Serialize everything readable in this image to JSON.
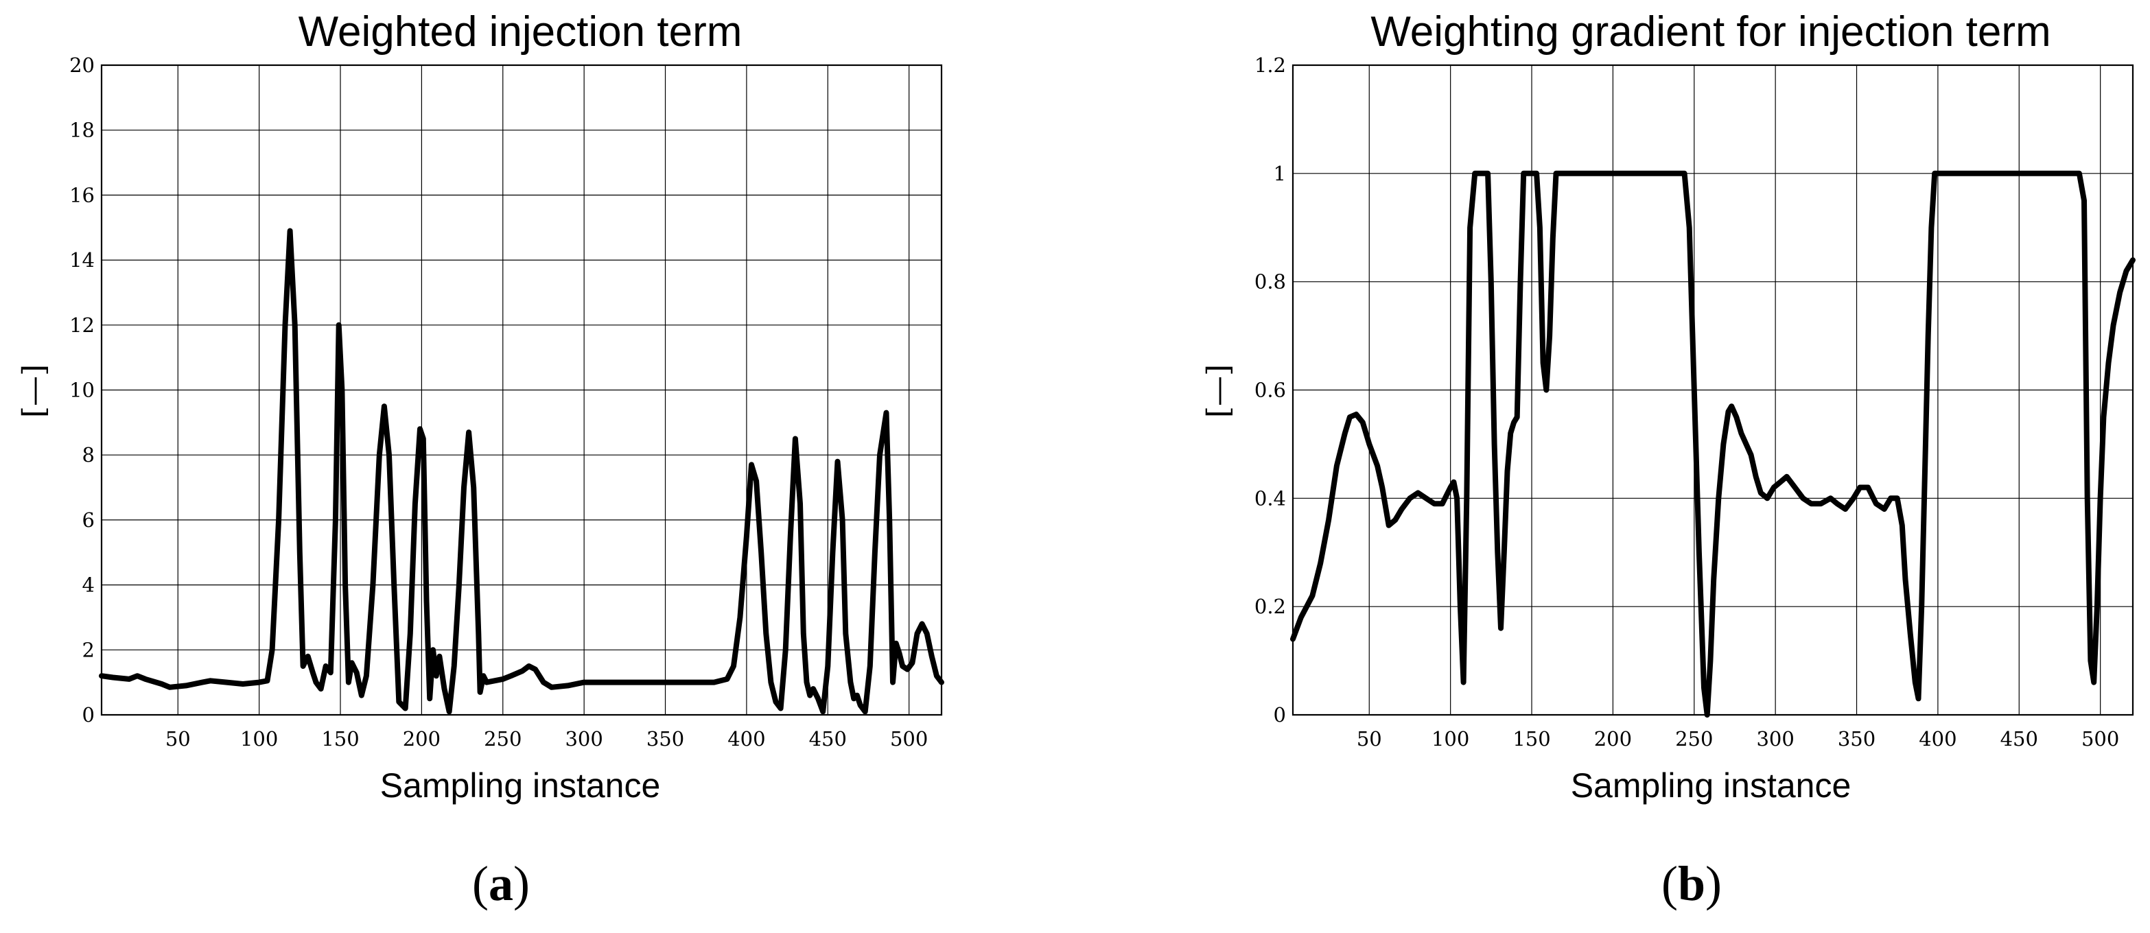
{
  "chart_data": [
    {
      "type": "line",
      "panel": "a",
      "title": "Weighted injection term",
      "xlabel": "Sampling instance",
      "ylabel": "[—]",
      "xlim": [
        3,
        520
      ],
      "ylim": [
        0,
        20
      ],
      "xticks": [
        50,
        100,
        150,
        200,
        250,
        300,
        350,
        400,
        450,
        500
      ],
      "yticks": [
        0,
        2,
        4,
        6,
        8,
        10,
        12,
        14,
        16,
        18,
        20
      ],
      "grid": true,
      "series": [
        {
          "name": "weighted injection term",
          "x": [
            3,
            10,
            20,
            25,
            30,
            40,
            45,
            55,
            65,
            70,
            80,
            90,
            100,
            105,
            108,
            112,
            116,
            119,
            122,
            125,
            127,
            130,
            133,
            135,
            138,
            141,
            144,
            147,
            149,
            151,
            153,
            155,
            157,
            160,
            163,
            166,
            170,
            174,
            177,
            180,
            183,
            186,
            188,
            190,
            193,
            196,
            199,
            201,
            203,
            205,
            207,
            209,
            211,
            214,
            217,
            220,
            223,
            226,
            229,
            232,
            235,
            236,
            238,
            240,
            250,
            255,
            262,
            266,
            270,
            275,
            280,
            290,
            300,
            320,
            350,
            370,
            380,
            388,
            392,
            396,
            400,
            403,
            406,
            409,
            412,
            415,
            418,
            421,
            424,
            427,
            430,
            433,
            435,
            437,
            439,
            441,
            444,
            447,
            450,
            453,
            456,
            459,
            461,
            464,
            466,
            468,
            470,
            473,
            476,
            479,
            482,
            486,
            488,
            490,
            492,
            494,
            496,
            499,
            502,
            505,
            508,
            511,
            514,
            517,
            520
          ],
          "values": [
            1.2,
            1.15,
            1.1,
            1.2,
            1.1,
            0.95,
            0.85,
            0.9,
            1.0,
            1.05,
            1.0,
            0.95,
            1.0,
            1.05,
            2.0,
            6.0,
            12.0,
            14.9,
            12.0,
            5.0,
            1.5,
            1.8,
            1.3,
            1.0,
            0.8,
            1.5,
            1.3,
            6.0,
            12.0,
            10.0,
            4.0,
            1.0,
            1.6,
            1.3,
            0.6,
            1.2,
            4.0,
            8.0,
            9.5,
            8.0,
            4.0,
            0.4,
            0.3,
            0.2,
            2.5,
            6.5,
            8.8,
            8.5,
            3.5,
            0.5,
            2.0,
            1.2,
            1.8,
            0.8,
            0.1,
            1.5,
            4.0,
            7.0,
            8.7,
            7.0,
            2.5,
            0.7,
            1.2,
            1.0,
            1.1,
            1.2,
            1.35,
            1.5,
            1.4,
            1.0,
            0.85,
            0.9,
            1.0,
            1.0,
            1.0,
            1.0,
            1.0,
            1.1,
            1.5,
            3.0,
            5.5,
            7.7,
            7.2,
            5.0,
            2.5,
            1.0,
            0.4,
            0.2,
            2.0,
            5.5,
            8.5,
            6.5,
            2.5,
            1.0,
            0.6,
            0.8,
            0.5,
            0.1,
            1.5,
            5.0,
            7.8,
            6.0,
            2.5,
            1.0,
            0.5,
            0.6,
            0.3,
            0.1,
            1.5,
            5.0,
            8.0,
            9.3,
            6.0,
            1.0,
            2.2,
            1.9,
            1.5,
            1.4,
            1.6,
            2.5,
            2.8,
            2.5,
            1.8,
            1.2,
            1.0
          ]
        }
      ]
    },
    {
      "type": "line",
      "panel": "b",
      "title": "Weighting gradient for injection term",
      "xlabel": "Sampling instance",
      "ylabel": "[—]",
      "xlim": [
        3,
        520
      ],
      "ylim": [
        0,
        1.2
      ],
      "xticks": [
        50,
        100,
        150,
        200,
        250,
        300,
        350,
        400,
        450,
        500
      ],
      "yticks": [
        0,
        0.2,
        0.4,
        0.6,
        0.8,
        1,
        1.2
      ],
      "ytick_labels": [
        "0",
        "0.2",
        "0.4",
        "0.6",
        "0.8",
        "1",
        "1.2"
      ],
      "grid": true,
      "series": [
        {
          "name": "weighting gradient",
          "x": [
            3,
            8,
            15,
            20,
            25,
            30,
            35,
            38,
            42,
            46,
            50,
            55,
            58,
            62,
            66,
            70,
            75,
            80,
            85,
            90,
            95,
            100,
            102,
            104,
            106,
            108,
            110,
            112,
            115,
            118,
            121,
            123,
            125,
            127,
            129,
            131,
            133,
            135,
            137,
            139,
            141,
            143,
            145,
            147,
            149,
            151,
            153,
            155,
            157,
            159,
            161,
            163,
            165,
            170,
            180,
            200,
            220,
            240,
            244,
            247,
            250,
            253,
            256,
            258,
            260,
            262,
            265,
            268,
            271,
            273,
            276,
            279,
            282,
            285,
            288,
            291,
            295,
            299,
            303,
            307,
            312,
            317,
            322,
            328,
            334,
            338,
            343,
            348,
            352,
            357,
            362,
            367,
            371,
            375,
            378,
            380,
            383,
            386,
            388,
            390,
            392,
            394,
            396,
            398,
            400,
            420,
            450,
            470,
            480,
            487,
            490,
            492,
            494,
            496,
            498,
            500,
            502,
            505,
            508,
            512,
            516,
            520
          ],
          "values": [
            0.14,
            0.18,
            0.22,
            0.28,
            0.36,
            0.46,
            0.52,
            0.55,
            0.555,
            0.54,
            0.5,
            0.46,
            0.42,
            0.35,
            0.36,
            0.38,
            0.4,
            0.41,
            0.4,
            0.39,
            0.39,
            0.42,
            0.43,
            0.4,
            0.2,
            0.06,
            0.4,
            0.9,
            1.0,
            1.0,
            1.0,
            1.0,
            0.8,
            0.5,
            0.3,
            0.16,
            0.3,
            0.45,
            0.52,
            0.54,
            0.55,
            0.8,
            1.0,
            1.0,
            1.0,
            1.0,
            1.0,
            0.9,
            0.65,
            0.6,
            0.7,
            0.88,
            1.0,
            1.0,
            1.0,
            1.0,
            1.0,
            1.0,
            1.0,
            0.9,
            0.6,
            0.3,
            0.05,
            0.0,
            0.1,
            0.25,
            0.4,
            0.5,
            0.56,
            0.57,
            0.55,
            0.52,
            0.5,
            0.48,
            0.44,
            0.41,
            0.4,
            0.42,
            0.43,
            0.44,
            0.42,
            0.4,
            0.39,
            0.39,
            0.4,
            0.39,
            0.38,
            0.4,
            0.42,
            0.42,
            0.39,
            0.38,
            0.4,
            0.4,
            0.35,
            0.25,
            0.15,
            0.06,
            0.03,
            0.2,
            0.45,
            0.7,
            0.9,
            1.0,
            1.0,
            1.0,
            1.0,
            1.0,
            1.0,
            1.0,
            0.95,
            0.4,
            0.1,
            0.06,
            0.2,
            0.4,
            0.55,
            0.65,
            0.72,
            0.78,
            0.82,
            0.84
          ]
        }
      ]
    }
  ],
  "captions": {
    "a": "(a)",
    "b": "(b)"
  }
}
